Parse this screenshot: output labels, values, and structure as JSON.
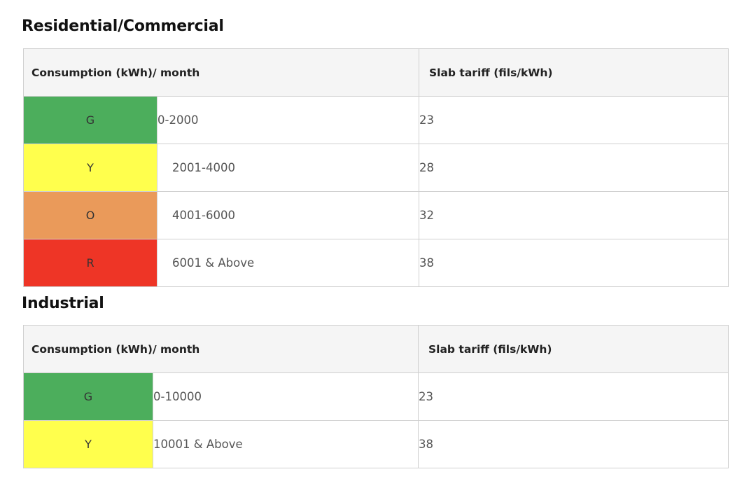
{
  "residential": {
    "title": "Residential/Commercial",
    "header": {
      "consumption": "Consumption (kWh)/ month",
      "tariff": "Slab tariff (fils/kWh)"
    },
    "rows": [
      {
        "band": "G",
        "band_color": "#4cae5c",
        "range": "0-2000",
        "tariff": "23"
      },
      {
        "band": "Y",
        "band_color": "#ffff4d",
        "range": "2001-4000",
        "tariff": "28"
      },
      {
        "band": "O",
        "band_color": "#ea9a5a",
        "range": "4001-6000",
        "tariff": "32"
      },
      {
        "band": "R",
        "band_color": "#ee3526",
        "range": "6001 & Above",
        "tariff": "38"
      }
    ]
  },
  "industrial": {
    "title": "Industrial",
    "header": {
      "consumption": "Consumption (kWh)/ month",
      "tariff": "Slab tariff (fils/kWh)"
    },
    "rows": [
      {
        "band": "G",
        "band_color": "#4cae5c",
        "range": "0-10000",
        "tariff": "23"
      },
      {
        "band": "Y",
        "band_color": "#ffff4d",
        "range": "10001 & Above",
        "tariff": "38"
      }
    ]
  }
}
